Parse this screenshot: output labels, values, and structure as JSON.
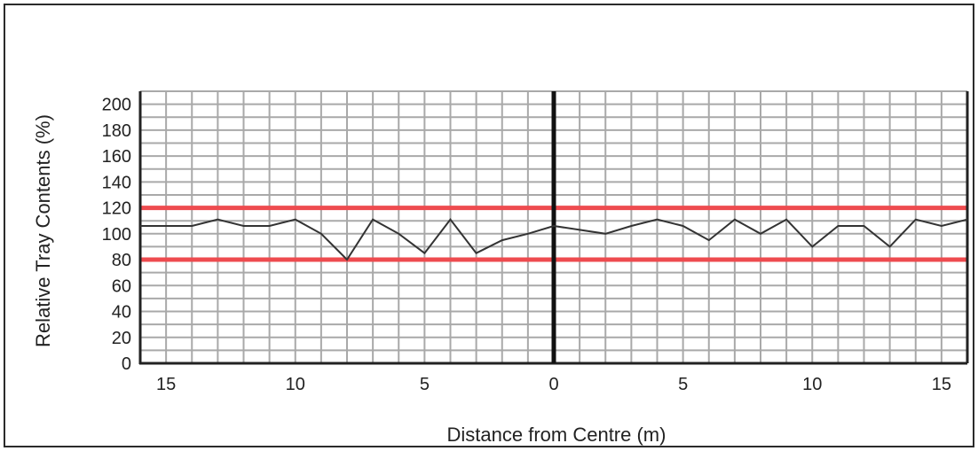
{
  "chart_data": {
    "type": "line",
    "title": "",
    "xlabel": "Distance from Centre (m)",
    "ylabel": "Relative Tray Contents (%)",
    "xlim": [
      -16,
      16
    ],
    "ylim": [
      0,
      210
    ],
    "x_tick_values": [
      -15,
      -10,
      -5,
      0,
      5,
      10,
      15
    ],
    "x_tick_labels": [
      "15",
      "10",
      "5",
      "0",
      "5",
      "10",
      "15"
    ],
    "y_tick_values": [
      0,
      20,
      40,
      60,
      80,
      100,
      120,
      140,
      160,
      180,
      200
    ],
    "y_tick_labels": [
      "0",
      "20",
      "40",
      "60",
      "80",
      "100",
      "120",
      "140",
      "160",
      "180",
      "200"
    ],
    "grid": true,
    "centre_line_x": 0,
    "reference_lines": [
      {
        "y": 120,
        "color": "#ee4b4f"
      },
      {
        "y": 80,
        "color": "#ee4b4f"
      }
    ],
    "series": [
      {
        "color": "#333333",
        "x": [
          -16,
          -15,
          -14,
          -13,
          -12,
          -11,
          -10,
          -9,
          -8,
          -7,
          -6,
          -5,
          -4,
          -3,
          -2,
          -1,
          0,
          1,
          2,
          3,
          4,
          5,
          6,
          7,
          8,
          9,
          10,
          11,
          12,
          13,
          14,
          15,
          16
        ],
        "y": [
          106,
          106,
          106,
          111,
          106,
          106,
          111,
          100,
          80,
          111,
          100,
          85,
          111,
          85,
          95,
          100,
          106,
          103,
          100,
          106,
          111,
          106,
          95,
          111,
          100,
          111,
          90,
          106,
          106,
          90,
          111,
          106,
          111
        ]
      }
    ]
  }
}
